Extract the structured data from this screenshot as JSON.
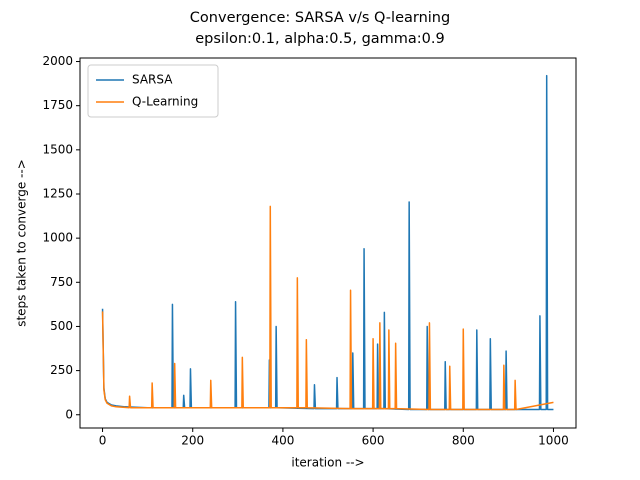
{
  "chart_data": {
    "type": "line",
    "title": "Convergence: SARSA v/s Q-learning",
    "subtitle": "epsilon:0.1, alpha:0.5, gamma:0.9",
    "xlabel": "iteration -->",
    "ylabel": "steps taken to converge -->",
    "xlim": [
      -50,
      1050
    ],
    "ylim": [
      -75,
      2020
    ],
    "xticks": [
      0,
      200,
      400,
      600,
      800,
      1000
    ],
    "yticks": [
      0,
      250,
      500,
      750,
      1000,
      1250,
      1500,
      1750,
      2000
    ],
    "grid": false,
    "legend": "upper-left",
    "series": [
      {
        "name": "SARSA",
        "color": "#1f77b4",
        "x": [
          0,
          3,
          6,
          10,
          20,
          30,
          50,
          100,
          154,
          155,
          157,
          179,
          180,
          182,
          194,
          195,
          197,
          294,
          295,
          297,
          369,
          370,
          372,
          384,
          385,
          387,
          469,
          470,
          472,
          519,
          520,
          522,
          554,
          555,
          557,
          579,
          580,
          582,
          609,
          610,
          612,
          624,
          625,
          627,
          679,
          680,
          682,
          719,
          720,
          722,
          759,
          760,
          762,
          829,
          830,
          832,
          859,
          860,
          862,
          894,
          895,
          897,
          969,
          970,
          972,
          984,
          985,
          987,
          1000
        ],
        "values": [
          600,
          150,
          90,
          70,
          55,
          50,
          45,
          40,
          40,
          625,
          40,
          40,
          110,
          40,
          40,
          260,
          40,
          40,
          640,
          40,
          40,
          310,
          40,
          40,
          500,
          40,
          35,
          170,
          35,
          35,
          210,
          35,
          35,
          350,
          35,
          35,
          940,
          35,
          35,
          400,
          35,
          35,
          580,
          35,
          30,
          1205,
          30,
          30,
          500,
          30,
          30,
          300,
          30,
          30,
          480,
          30,
          30,
          430,
          30,
          30,
          360,
          30,
          30,
          560,
          30,
          30,
          1920,
          30,
          30
        ]
      },
      {
        "name": "Q-Learning",
        "color": "#ff7f0e",
        "x": [
          0,
          3,
          6,
          10,
          20,
          30,
          59,
          60,
          62,
          109,
          110,
          112,
          159,
          160,
          162,
          239,
          240,
          242,
          309,
          310,
          312,
          371,
          372,
          374,
          431,
          432,
          434,
          451,
          452,
          454,
          549,
          550,
          552,
          599,
          600,
          602,
          614,
          615,
          617,
          634,
          635,
          637,
          649,
          650,
          652,
          724,
          725,
          727,
          769,
          770,
          772,
          799,
          800,
          802,
          889,
          890,
          892,
          914,
          915,
          917,
          1000
        ],
        "values": [
          585,
          140,
          85,
          65,
          50,
          45,
          40,
          105,
          40,
          40,
          180,
          40,
          40,
          290,
          40,
          40,
          195,
          40,
          40,
          325,
          40,
          40,
          1180,
          40,
          40,
          775,
          40,
          40,
          425,
          40,
          35,
          705,
          35,
          35,
          430,
          35,
          35,
          520,
          35,
          35,
          480,
          35,
          35,
          405,
          35,
          30,
          520,
          30,
          30,
          275,
          30,
          30,
          485,
          30,
          30,
          280,
          30,
          30,
          195,
          30,
          70
        ]
      }
    ]
  }
}
